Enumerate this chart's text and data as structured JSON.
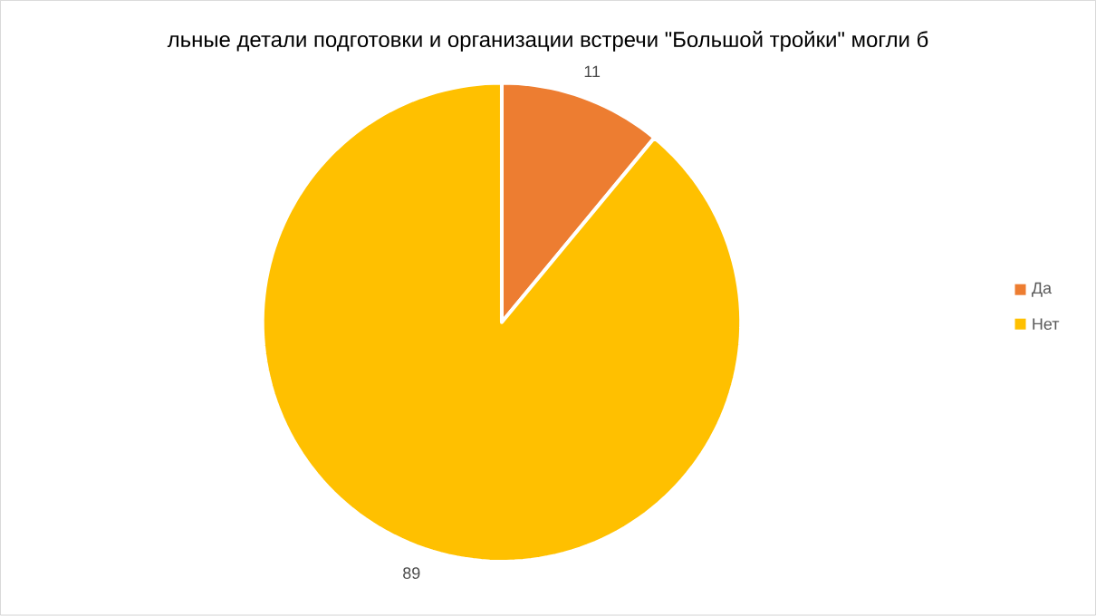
{
  "chart_data": {
    "type": "pie",
    "title": "льные детали подготовки и организации встречи \"Большой тройки\" могли б",
    "categories": [
      "Да",
      "Нет"
    ],
    "values": [
      11,
      89
    ],
    "colors": [
      "#ed7d31",
      "#ffc000"
    ],
    "data_labels": true,
    "legend": "right"
  }
}
